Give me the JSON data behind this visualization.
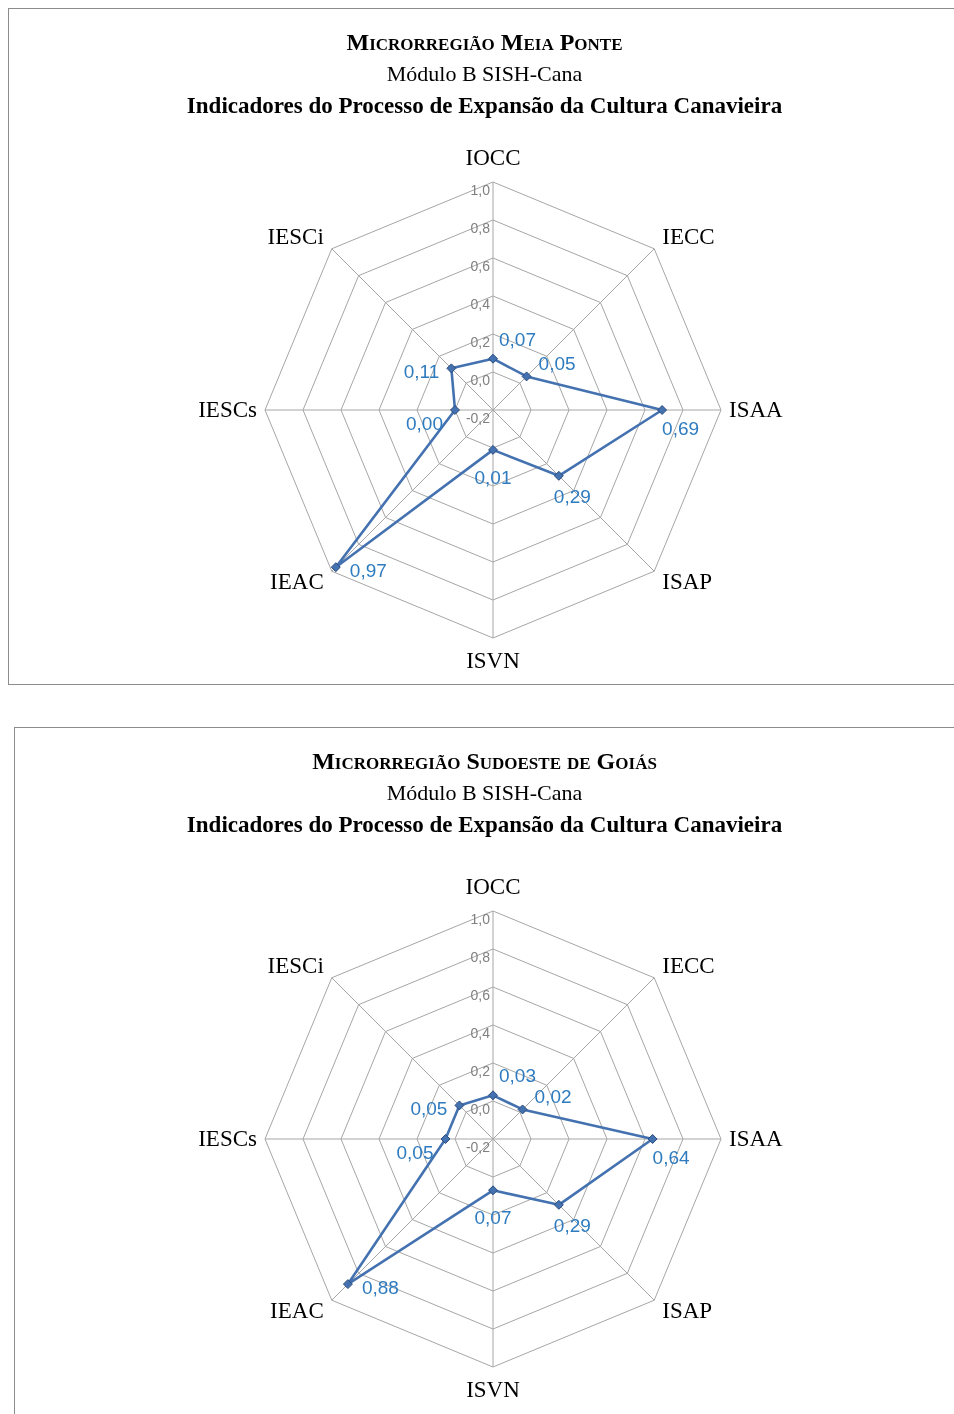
{
  "chart_data": [
    {
      "type": "radar",
      "title": "Microrregião Meia Ponte",
      "subtitle": "Módulo B SISH-Cana",
      "annotations": [
        "Indicadores do Processo de Expansão da Cultura Canavieira"
      ],
      "categories": [
        "IOCC",
        "IECC",
        "ISAA",
        "ISAP",
        "ISVN",
        "IEAC",
        "IESCs",
        "IESCi"
      ],
      "series": [
        {
          "color": "#4472b0",
          "values": [
            0.07,
            0.05,
            0.69,
            0.29,
            0.01,
            0.97,
            0.0,
            0.11
          ],
          "value_labels": [
            "0,07",
            "0,05",
            "0,69",
            "0,29",
            "0,01",
            "0,97",
            "0,00",
            "0,11"
          ]
        }
      ],
      "ylim": [
        -0.2,
        1.0
      ],
      "yticks": [
        {
          "value": -0.2,
          "label": "-0,2"
        },
        {
          "value": 0,
          "label": "0,0"
        },
        {
          "value": 0.2,
          "label": "0,2"
        },
        {
          "value": 0.4,
          "label": "0,4"
        },
        {
          "value": 0.6,
          "label": "0,6"
        },
        {
          "value": 0.8,
          "label": "0,8"
        },
        {
          "value": 1.0,
          "label": "1,0"
        }
      ],
      "grid": true,
      "marker": "diamond"
    },
    {
      "type": "radar",
      "title": "Microrregião Sudoeste de Goiás",
      "subtitle": "Módulo B SISH-Cana",
      "annotations": [
        "Indicadores do Processo de Expansão da Cultura Canavieira"
      ],
      "categories": [
        "IOCC",
        "IECC",
        "ISAA",
        "ISAP",
        "ISVN",
        "IEAC",
        "IESCs",
        "IESCi"
      ],
      "series": [
        {
          "color": "#4472b0",
          "values": [
            0.03,
            0.02,
            0.64,
            0.29,
            0.07,
            0.88,
            0.05,
            0.05
          ],
          "value_labels": [
            "0,03",
            "0,02",
            "0,64",
            "0,29",
            "0,07",
            "0,88",
            "0,05",
            "0,05"
          ]
        }
      ],
      "ylim": [
        -0.2,
        1.0
      ],
      "yticks": [
        {
          "value": -0.2,
          "label": "-0,2"
        },
        {
          "value": 0,
          "label": "0,0"
        },
        {
          "value": 0.2,
          "label": "0,2"
        },
        {
          "value": 0.4,
          "label": "0,4"
        },
        {
          "value": 0.6,
          "label": "0,6"
        },
        {
          "value": 0.8,
          "label": "0,8"
        },
        {
          "value": 1.0,
          "label": "1,0"
        }
      ],
      "grid": true,
      "marker": "diamond"
    }
  ]
}
